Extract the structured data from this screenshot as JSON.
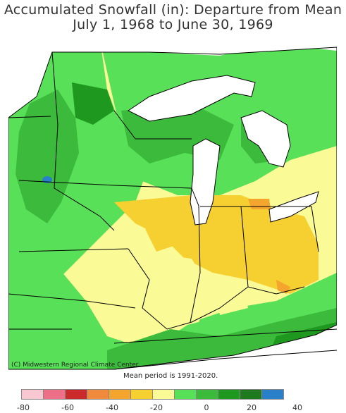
{
  "title_line1": "Accumulated Snowfall (in): Departure from Mean",
  "title_line2": "July 1, 1968 to June 30, 1969",
  "credit": "(C) Midwestern Regional Climate Center",
  "mean_period": "Mean period is 1991-2020.",
  "legend": {
    "ticks": [
      "-80",
      "-60",
      "-40",
      "-20",
      "0",
      "20",
      "40"
    ],
    "colors": [
      "#f9c7d2",
      "#ee6f88",
      "#cc2a2a",
      "#f08a3c",
      "#f3a52e",
      "#f6cf30",
      "#fafa96",
      "#58e058",
      "#3cba3c",
      "#1f981f",
      "#1f7a1f",
      "#2a80c8"
    ]
  },
  "map": {
    "colors": {
      "land_base": "#fafa96",
      "green_light": "#58e058",
      "green_mid": "#3cba3c",
      "green_dark": "#1f981f",
      "yellow": "#f6cf30",
      "orange": "#f3a52e",
      "blue": "#2a80c8",
      "water": "#ffffff"
    }
  }
}
